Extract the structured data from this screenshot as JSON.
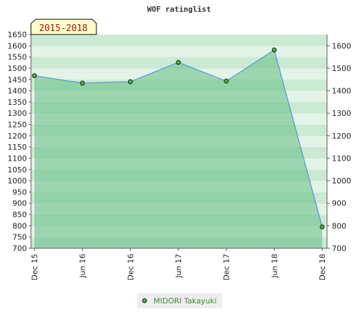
{
  "chart_data": {
    "type": "area",
    "title": "WOF ratinglist",
    "badge": "2015-2018",
    "categories": [
      "Dec 15",
      "Jun 16",
      "Dec 16",
      "Jun 17",
      "Dec 17",
      "Jun 18",
      "Dec 18"
    ],
    "series": [
      {
        "name": "MIDORI Takayuki",
        "values": [
          1467,
          1434,
          1440,
          1526,
          1443,
          1581,
          795
        ]
      }
    ],
    "left_axis": {
      "ylim": [
        700,
        1650
      ],
      "ticks": [
        700,
        750,
        800,
        850,
        900,
        950,
        1000,
        1050,
        1100,
        1150,
        1200,
        1250,
        1300,
        1350,
        1400,
        1450,
        1500,
        1550,
        1600,
        1650
      ]
    },
    "right_axis": {
      "ylim": [
        700,
        1650
      ],
      "ticks": [
        700,
        800,
        900,
        1000,
        1100,
        1200,
        1300,
        1400,
        1500,
        1600
      ]
    },
    "legend_position": "bottom-center",
    "grid": true,
    "colors": {
      "line": "#5b9bd5",
      "fill": "#6cc28a",
      "marker": "#4caf50",
      "badge_bg": "#ffffcc",
      "legend_bg": "#eeeeee"
    }
  }
}
